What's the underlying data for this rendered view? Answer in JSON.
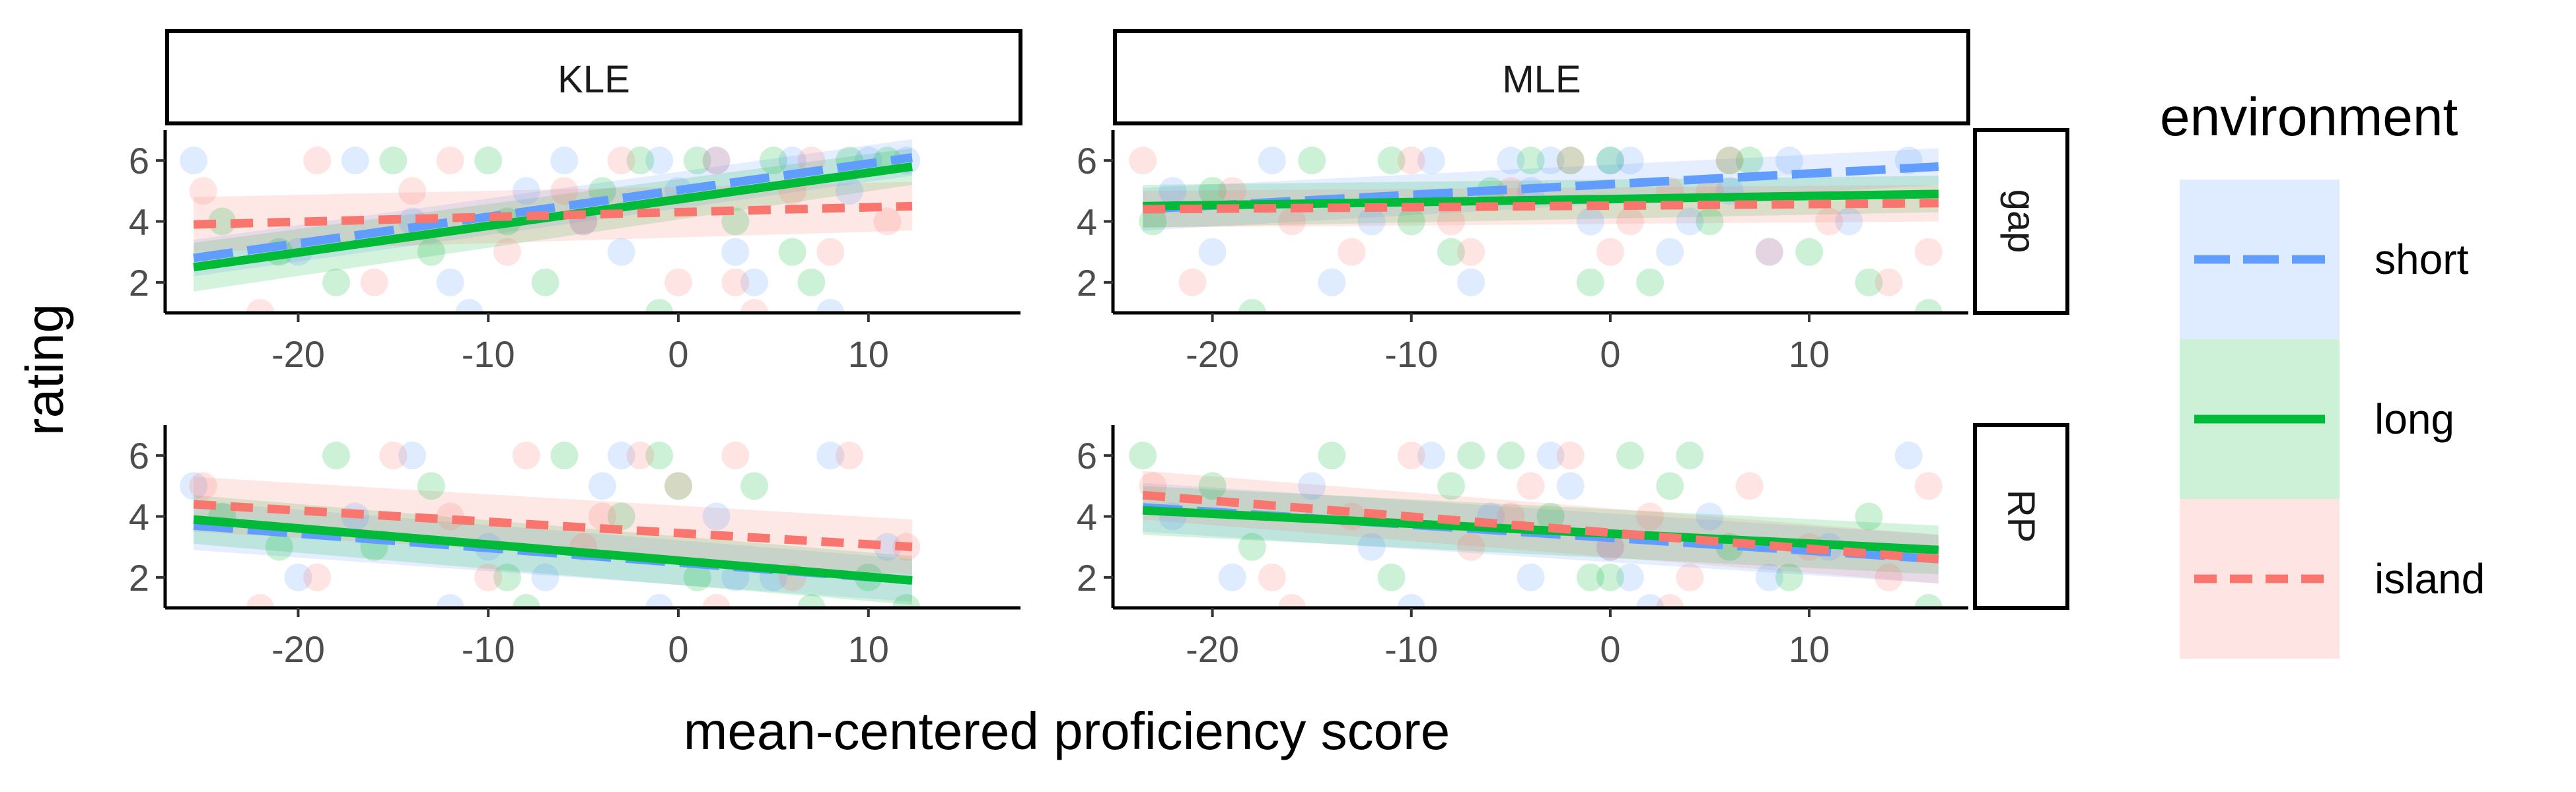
{
  "chart_data": {
    "type": "scatter",
    "layout": "facet_grid",
    "xlabel": "mean-centered proficiency score",
    "ylabel": "rating",
    "x_ticks": [
      -20,
      -10,
      0,
      10
    ],
    "y_ticks": [
      2,
      4,
      6
    ],
    "y_tick_labels": [
      "2",
      "4",
      "6"
    ],
    "x_tick_labels": [
      "-20",
      "-10",
      "0",
      "10"
    ],
    "ylim": [
      1,
      7
    ],
    "column_facets": [
      "KLE",
      "MLE"
    ],
    "row_facets": [
      "gap",
      "RP"
    ],
    "grid": false,
    "legend": {
      "title": "environment",
      "placement": "right",
      "entries": [
        {
          "label": "short",
          "color": "#619CFF",
          "linetype": "longdash"
        },
        {
          "label": "long",
          "color": "#00BA38",
          "linetype": "solid"
        },
        {
          "label": "island",
          "color": "#F8766D",
          "linetype": "dashed"
        }
      ]
    },
    "panels": [
      {
        "column": "KLE",
        "row": "gap",
        "xlim": [
          -27,
          18
        ],
        "fits": [
          {
            "series": "short",
            "x": [
              -25.5,
              12.3
            ],
            "y": [
              2.8,
              6.1
            ],
            "band": [
              0.6,
              0.6
            ]
          },
          {
            "series": "long",
            "x": [
              -25.5,
              12.3
            ],
            "y": [
              2.5,
              5.8
            ],
            "band": [
              0.8,
              0.6
            ]
          },
          {
            "series": "island",
            "x": [
              -25.5,
              12.3
            ],
            "y": [
              3.9,
              4.5
            ],
            "band": [
              0.9,
              0.8
            ]
          }
        ],
        "points": [
          {
            "series": "short",
            "x": [
              -25.5,
              -17,
              -14,
              -12,
              -8,
              -6,
              -3,
              -1,
              0,
              2,
              4,
              6,
              8,
              10,
              12,
              -20,
              -11,
              -5,
              3,
              9
            ],
            "y": [
              6,
              6,
              4,
              2,
              5,
              6,
              3,
              6,
              5,
              6,
              2,
              6,
              1,
              6,
              6,
              3,
              1,
              4,
              3,
              5
            ]
          },
          {
            "series": "long",
            "x": [
              -24,
              -18,
              -15,
              -13,
              -10,
              -7,
              -4,
              -2,
              1,
              3,
              5,
              7,
              9,
              11,
              -21,
              -9,
              -1,
              6
            ],
            "y": [
              4,
              2,
              6,
              3,
              6,
              2,
              5,
              6,
              6,
              4,
              6,
              2,
              6,
              6,
              3,
              4,
              1,
              3
            ]
          },
          {
            "series": "island",
            "x": [
              -25,
              -19,
              -16,
              -12,
              -9,
              -6,
              -3,
              0,
              2,
              4,
              6,
              8,
              11,
              -22,
              -14,
              -5,
              3,
              7
            ],
            "y": [
              5,
              6,
              2,
              6,
              3,
              5,
              6,
              2,
              6,
              1,
              5,
              3,
              4,
              1,
              5,
              4,
              2,
              6
            ]
          }
        ]
      },
      {
        "column": "MLE",
        "row": "gap",
        "xlim": [
          -25,
          18
        ],
        "fits": [
          {
            "series": "short",
            "x": [
              -23.5,
              16.5
            ],
            "y": [
              4.4,
              5.8
            ],
            "band": [
              0.7,
              0.6
            ]
          },
          {
            "series": "long",
            "x": [
              -23.5,
              16.5
            ],
            "y": [
              4.5,
              4.9
            ],
            "band": [
              0.7,
              0.6
            ]
          },
          {
            "series": "island",
            "x": [
              -23.5,
              16.5
            ],
            "y": [
              4.4,
              4.6
            ],
            "band": [
              0.6,
              0.6
            ]
          }
        ],
        "points": [
          {
            "series": "short",
            "x": [
              -22,
              -20,
              -17,
              -12,
              -9,
              -7,
              -5,
              -3,
              -1,
              1,
              3,
              6,
              9,
              12,
              15,
              -14,
              -4,
              0,
              4,
              8
            ],
            "y": [
              5,
              3,
              6,
              4,
              6,
              2,
              6,
              6,
              4,
              6,
              3,
              5,
              6,
              4,
              6,
              2,
              5,
              6,
              4,
              3
            ]
          },
          {
            "series": "long",
            "x": [
              -23,
              -18,
              -15,
              -11,
              -8,
              -6,
              -4,
              -2,
              0,
              2,
              5,
              7,
              10,
              13,
              16,
              -20,
              -10,
              -1,
              6
            ],
            "y": [
              4,
              1,
              6,
              6,
              3,
              5,
              6,
              6,
              6,
              2,
              4,
              6,
              3,
              2,
              1,
              5,
              4,
              2,
              6
            ]
          },
          {
            "series": "island",
            "x": [
              -23.5,
              -19,
              -16,
              -13,
              -10,
              -7,
              -5,
              -2,
              1,
              3,
              6,
              8,
              11,
              14,
              16,
              -21,
              -8,
              0,
              5
            ],
            "y": [
              6,
              5,
              4,
              3,
              6,
              3,
              5,
              6,
              4,
              5,
              6,
              3,
              4,
              2,
              3,
              2,
              4,
              3,
              5
            ]
          }
        ]
      },
      {
        "column": "KLE",
        "row": "RP",
        "xlim": [
          -27,
          18
        ],
        "fits": [
          {
            "series": "short",
            "x": [
              -25.5,
              12.3
            ],
            "y": [
              3.7,
              1.9
            ],
            "band": [
              0.8,
              0.7
            ]
          },
          {
            "series": "long",
            "x": [
              -25.5,
              12.3
            ],
            "y": [
              3.9,
              1.9
            ],
            "band": [
              0.8,
              0.8
            ]
          },
          {
            "series": "island",
            "x": [
              -25.5,
              12.3
            ],
            "y": [
              4.4,
              3.0
            ],
            "band": [
              0.9,
              0.9
            ]
          }
        ],
        "points": [
          {
            "series": "short",
            "x": [
              -25.5,
              -20,
              -17,
              -14,
              -10,
              -7,
              -4,
              -1,
              2,
              5,
              8,
              11,
              -12,
              -3,
              3
            ],
            "y": [
              5,
              2,
              4,
              6,
              3,
              2,
              5,
              1,
              4,
              2,
              6,
              3,
              1,
              6,
              2
            ]
          },
          {
            "series": "long",
            "x": [
              -24,
              -18,
              -16,
              -13,
              -9,
              -6,
              -3,
              -1,
              1,
              4,
              7,
              10,
              12,
              -21,
              -8,
              0
            ],
            "y": [
              4,
              6,
              3,
              5,
              2,
              6,
              4,
              6,
              2,
              5,
              1,
              2,
              1,
              3,
              1,
              5
            ]
          },
          {
            "series": "island",
            "x": [
              -25,
              -19,
              -15,
              -12,
              -8,
              -5,
              -2,
              0,
              3,
              6,
              9,
              12,
              -22,
              -10,
              -4,
              2
            ],
            "y": [
              5,
              2,
              6,
              4,
              6,
              3,
              6,
              5,
              6,
              2,
              6,
              3,
              1,
              2,
              4,
              1
            ]
          }
        ]
      },
      {
        "column": "MLE",
        "row": "RP",
        "xlim": [
          -25,
          18
        ],
        "fits": [
          {
            "series": "short",
            "x": [
              -23.5,
              16.5
            ],
            "y": [
              4.3,
              2.6
            ],
            "band": [
              0.8,
              0.8
            ]
          },
          {
            "series": "long",
            "x": [
              -23.5,
              16.5
            ],
            "y": [
              4.2,
              2.9
            ],
            "band": [
              0.8,
              0.8
            ]
          },
          {
            "series": "island",
            "x": [
              -23.5,
              16.5
            ],
            "y": [
              4.7,
              2.6
            ],
            "band": [
              0.8,
              0.8
            ]
          }
        ],
        "points": [
          {
            "series": "short",
            "x": [
              -22,
              -19,
              -15,
              -12,
              -9,
              -6,
              -4,
              -2,
              0,
              2,
              5,
              8,
              11,
              15,
              -10,
              -3,
              1
            ],
            "y": [
              4,
              2,
              5,
              3,
              6,
              4,
              2,
              5,
              3,
              1,
              4,
              2,
              3,
              6,
              1,
              6,
              2
            ]
          },
          {
            "series": "long",
            "x": [
              -23.5,
              -18,
              -14,
              -11,
              -8,
              -5,
              -3,
              -1,
              1,
              3,
              6,
              9,
              13,
              16,
              -20,
              -7,
              0,
              4
            ],
            "y": [
              6,
              3,
              6,
              2,
              5,
              6,
              4,
              2,
              6,
              5,
              3,
              2,
              4,
              1,
              5,
              6,
              2,
              6
            ]
          },
          {
            "series": "island",
            "x": [
              -23,
              -17,
              -13,
              -10,
              -7,
              -4,
              -2,
              0,
              2,
              4,
              7,
              10,
              14,
              16,
              -16,
              -5,
              3
            ],
            "y": [
              5,
              2,
              4,
              6,
              3,
              5,
              6,
              3,
              4,
              2,
              5,
              3,
              2,
              5,
              1,
              4,
              1
            ]
          }
        ]
      }
    ]
  }
}
